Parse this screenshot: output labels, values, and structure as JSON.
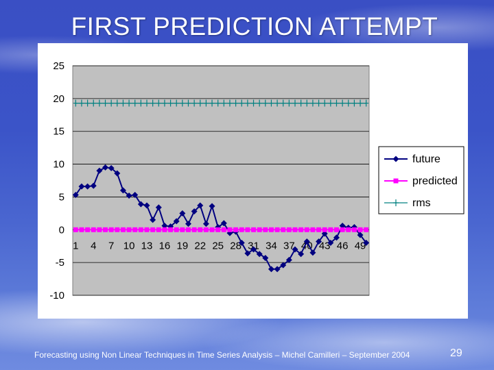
{
  "slide": {
    "title": "FIRST PREDICTION ATTEMPT",
    "footer": "Forecasting using Non Linear Techniques in Time Series Analysis – Michel Camilleri – September 2004",
    "page_number": "29"
  },
  "chart_data": {
    "type": "line",
    "title": "",
    "xlabel": "",
    "ylabel": "",
    "ylim": [
      -10,
      25
    ],
    "yticks": [
      25,
      20,
      15,
      10,
      5,
      0,
      -5,
      -10
    ],
    "x": [
      1,
      2,
      3,
      4,
      5,
      6,
      7,
      8,
      9,
      10,
      11,
      12,
      13,
      14,
      15,
      16,
      17,
      18,
      19,
      20,
      21,
      22,
      23,
      24,
      25,
      26,
      27,
      28,
      29,
      30,
      31,
      32,
      33,
      34,
      35,
      36,
      37,
      38,
      39,
      40,
      41,
      42,
      43,
      44,
      45,
      46,
      47,
      48,
      49,
      50
    ],
    "xticks": [
      1,
      4,
      7,
      10,
      13,
      16,
      19,
      22,
      25,
      28,
      31,
      34,
      37,
      40,
      43,
      46,
      49
    ],
    "grid": true,
    "plot_background": "#c0c0c0",
    "legend_position": "right",
    "series": [
      {
        "name": "future",
        "color": "#000080",
        "marker": "diamond",
        "values": [
          5.3,
          6.6,
          6.6,
          6.7,
          9.0,
          9.5,
          9.4,
          8.6,
          6.0,
          5.2,
          5.3,
          3.9,
          3.7,
          1.5,
          3.4,
          0.6,
          0.5,
          1.3,
          2.5,
          0.9,
          2.8,
          3.7,
          0.9,
          3.6,
          0.4,
          1.0,
          -0.5,
          -0.3,
          -2.0,
          -3.6,
          -3.0,
          -3.7,
          -4.3,
          -6.0,
          -6.0,
          -5.4,
          -4.6,
          -3.0,
          -3.7,
          -1.8,
          -3.5,
          -1.8,
          -0.6,
          -2.0,
          -1.2,
          0.6,
          0.3,
          0.4,
          -0.8,
          -2.0
        ]
      },
      {
        "name": "predicted",
        "color": "#ff00ff",
        "marker": "square",
        "values": [
          0,
          0,
          0,
          0,
          0,
          0,
          0,
          0,
          0,
          0,
          0,
          0,
          0,
          0,
          0,
          0,
          0,
          0,
          0,
          0,
          0,
          0,
          0,
          0,
          0,
          0,
          0,
          0,
          0,
          0,
          0,
          0,
          0,
          0,
          0,
          0,
          0,
          0,
          0,
          0,
          0,
          0,
          0,
          0,
          0,
          0,
          0,
          0,
          0,
          0
        ]
      },
      {
        "name": "rms",
        "color": "#008080",
        "marker": "plus",
        "values": [
          19.3,
          19.3,
          19.3,
          19.3,
          19.3,
          19.3,
          19.3,
          19.3,
          19.3,
          19.3,
          19.3,
          19.3,
          19.3,
          19.3,
          19.3,
          19.3,
          19.3,
          19.3,
          19.3,
          19.3,
          19.3,
          19.3,
          19.3,
          19.3,
          19.3,
          19.3,
          19.3,
          19.3,
          19.3,
          19.3,
          19.3,
          19.3,
          19.3,
          19.3,
          19.3,
          19.3,
          19.3,
          19.3,
          19.3,
          19.3,
          19.3,
          19.3,
          19.3,
          19.3,
          19.3,
          19.3,
          19.3,
          19.3,
          19.3,
          19.3
        ]
      }
    ]
  }
}
